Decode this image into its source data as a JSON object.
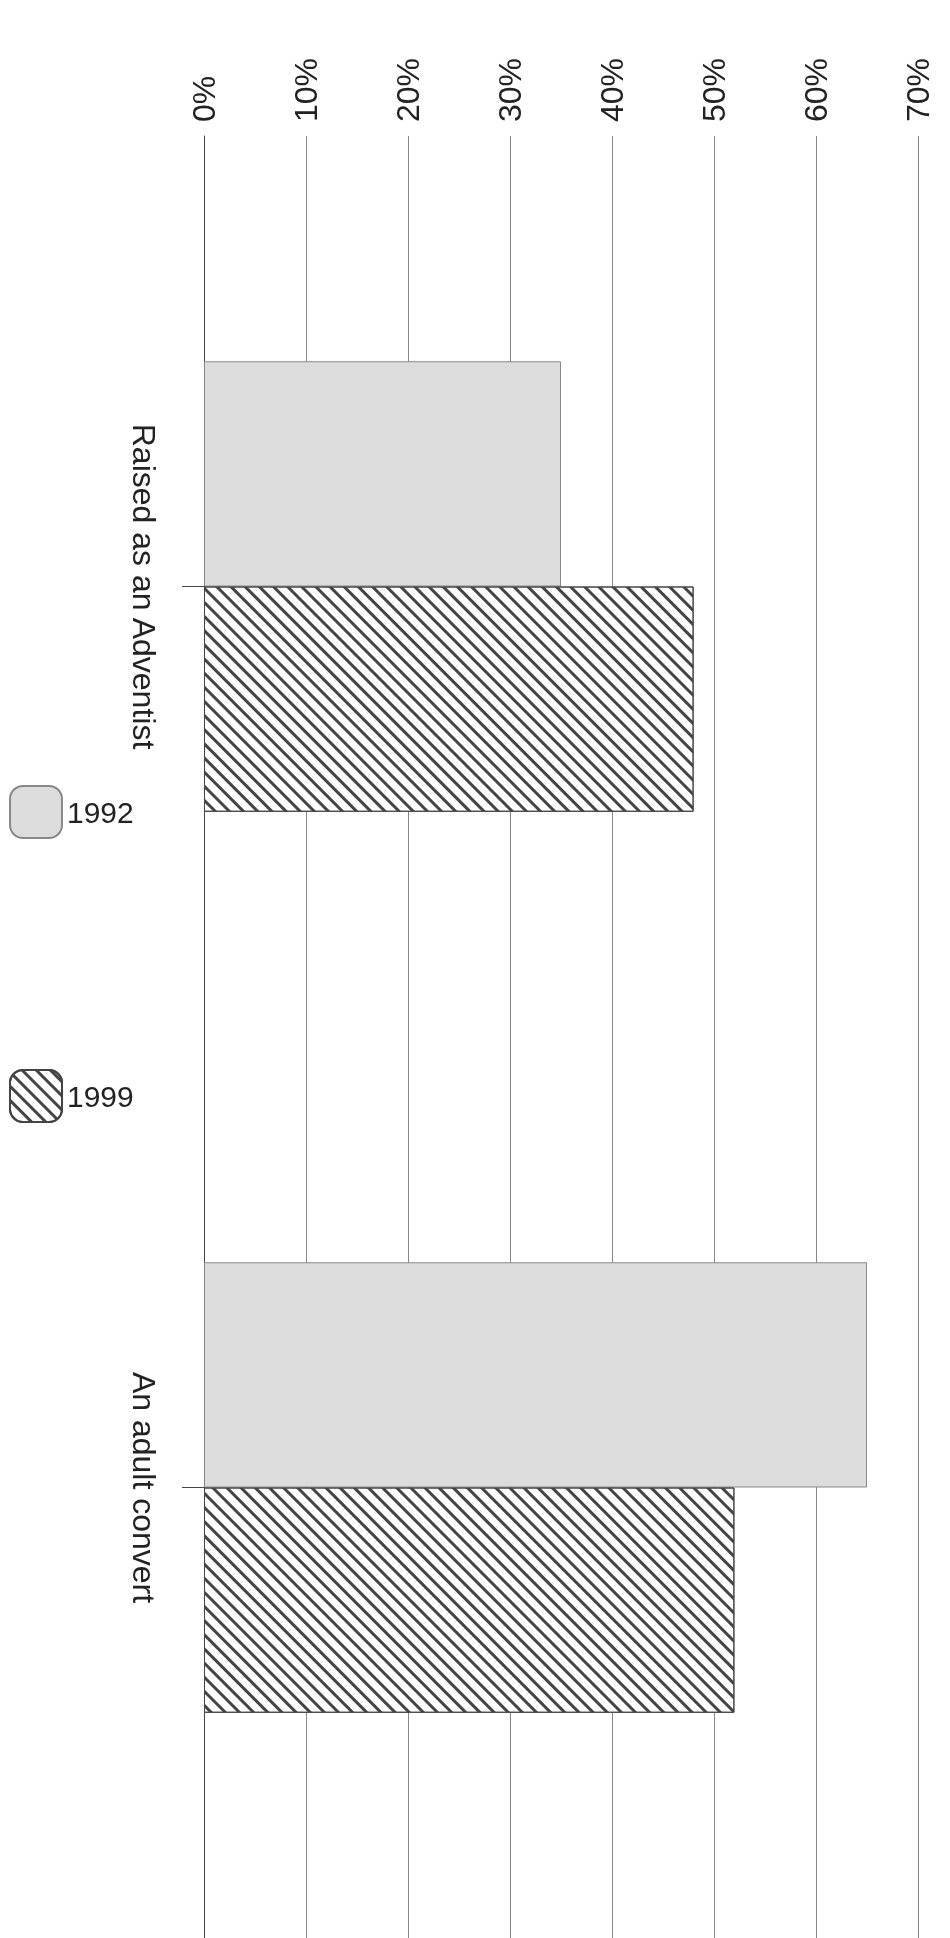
{
  "chart_data": {
    "type": "bar",
    "orientation": "horizontal",
    "categories": [
      "Raised as an Adventist",
      "An adult convert"
    ],
    "series": [
      {
        "name": "1992",
        "color": "#dcdcdc",
        "values": [
          35,
          65
        ]
      },
      {
        "name": "1999",
        "color": "#444444",
        "values": [
          48,
          52
        ]
      }
    ],
    "xlim": [
      0,
      70
    ],
    "xticks": [
      {
        "value": 0,
        "label": "0%"
      },
      {
        "value": 10,
        "label": "10%"
      },
      {
        "value": 20,
        "label": "20%"
      },
      {
        "value": 30,
        "label": "30%"
      },
      {
        "value": 40,
        "label": "40%"
      },
      {
        "value": 50,
        "label": "50%"
      },
      {
        "value": 60,
        "label": "60%"
      },
      {
        "value": 70,
        "label": "70%"
      }
    ],
    "grid": "x",
    "legend": "left"
  }
}
